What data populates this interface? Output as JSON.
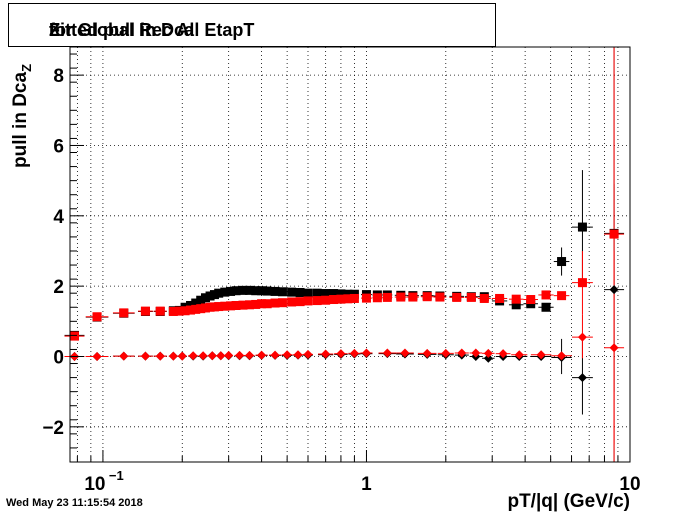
{
  "title": {
    "main": "Fitted pull in Dca",
    "sub": "Z",
    "rest": " for Global Rec All EtapT"
  },
  "timestamp": "Wed May 23 11:15:54 2018",
  "chart_data": {
    "type": "scatter",
    "x_scale": "log",
    "xlim": [
      0.075,
      10
    ],
    "ylim": [
      -3,
      8.8
    ],
    "xlabel": "pT/|q| (GeV/c)",
    "ylabel_main": "pull in Dca",
    "ylabel_sub": "Z",
    "grid": true,
    "x_ticks": [
      {
        "value": 0.1,
        "base": "10",
        "exp": "−1"
      },
      {
        "value": 1,
        "base": "1",
        "exp": ""
      },
      {
        "value": 10,
        "base": "10",
        "exp": ""
      }
    ],
    "y_ticks": [
      -2,
      0,
      2,
      4,
      6,
      8
    ],
    "y_tick_labels": [
      "−2",
      "0",
      "2",
      "4",
      "6",
      "8"
    ],
    "series": [
      {
        "color": "#000000",
        "marker": "square",
        "points": [
          {
            "x": 0.078,
            "y": 0.6
          },
          {
            "x": 0.095,
            "y": 1.12
          },
          {
            "x": 0.12,
            "y": 1.23
          },
          {
            "x": 0.145,
            "y": 1.28
          },
          {
            "x": 0.165,
            "y": 1.28
          },
          {
            "x": 0.185,
            "y": 1.3
          },
          {
            "x": 0.195,
            "y": 1.31
          },
          {
            "x": 0.205,
            "y": 1.4
          },
          {
            "x": 0.215,
            "y": 1.45
          },
          {
            "x": 0.225,
            "y": 1.52
          },
          {
            "x": 0.235,
            "y": 1.6
          },
          {
            "x": 0.245,
            "y": 1.67
          },
          {
            "x": 0.255,
            "y": 1.72
          },
          {
            "x": 0.265,
            "y": 1.76
          },
          {
            "x": 0.275,
            "y": 1.8
          },
          {
            "x": 0.29,
            "y": 1.83
          },
          {
            "x": 0.305,
            "y": 1.85
          },
          {
            "x": 0.32,
            "y": 1.87
          },
          {
            "x": 0.34,
            "y": 1.88
          },
          {
            "x": 0.36,
            "y": 1.88
          },
          {
            "x": 0.38,
            "y": 1.87
          },
          {
            "x": 0.4,
            "y": 1.87
          },
          {
            "x": 0.42,
            "y": 1.86
          },
          {
            "x": 0.45,
            "y": 1.85
          },
          {
            "x": 0.48,
            "y": 1.84
          },
          {
            "x": 0.52,
            "y": 1.83
          },
          {
            "x": 0.56,
            "y": 1.82
          },
          {
            "x": 0.6,
            "y": 1.8
          },
          {
            "x": 0.65,
            "y": 1.8
          },
          {
            "x": 0.7,
            "y": 1.79
          },
          {
            "x": 0.75,
            "y": 1.79
          },
          {
            "x": 0.8,
            "y": 1.78
          },
          {
            "x": 0.85,
            "y": 1.77
          },
          {
            "x": 0.9,
            "y": 1.77
          },
          {
            "x": 1.0,
            "y": 1.76
          },
          {
            "x": 1.1,
            "y": 1.75
          },
          {
            "x": 1.2,
            "y": 1.75
          },
          {
            "x": 1.35,
            "y": 1.74
          },
          {
            "x": 1.5,
            "y": 1.73
          },
          {
            "x": 1.7,
            "y": 1.73
          },
          {
            "x": 1.9,
            "y": 1.72
          },
          {
            "x": 2.2,
            "y": 1.71
          },
          {
            "x": 2.5,
            "y": 1.7
          },
          {
            "x": 2.8,
            "y": 1.7
          },
          {
            "x": 3.2,
            "y": 1.58
          },
          {
            "x": 3.7,
            "y": 1.47
          },
          {
            "x": 4.2,
            "y": 1.5
          },
          {
            "x": 4.8,
            "y": 1.4
          },
          {
            "x": 5.5,
            "y": 2.7
          },
          {
            "x": 6.6,
            "y": 3.68
          },
          {
            "x": 8.7,
            "y": 3.5
          }
        ]
      },
      {
        "color": "#ff0000",
        "marker": "square",
        "points": [
          {
            "x": 0.078,
            "y": 0.58
          },
          {
            "x": 0.095,
            "y": 1.13
          },
          {
            "x": 0.12,
            "y": 1.24
          },
          {
            "x": 0.145,
            "y": 1.29
          },
          {
            "x": 0.165,
            "y": 1.29
          },
          {
            "x": 0.185,
            "y": 1.28
          },
          {
            "x": 0.195,
            "y": 1.29
          },
          {
            "x": 0.205,
            "y": 1.3
          },
          {
            "x": 0.215,
            "y": 1.32
          },
          {
            "x": 0.225,
            "y": 1.34
          },
          {
            "x": 0.235,
            "y": 1.36
          },
          {
            "x": 0.245,
            "y": 1.38
          },
          {
            "x": 0.255,
            "y": 1.4
          },
          {
            "x": 0.265,
            "y": 1.41
          },
          {
            "x": 0.275,
            "y": 1.42
          },
          {
            "x": 0.29,
            "y": 1.43
          },
          {
            "x": 0.305,
            "y": 1.44
          },
          {
            "x": 0.32,
            "y": 1.45
          },
          {
            "x": 0.34,
            "y": 1.46
          },
          {
            "x": 0.36,
            "y": 1.47
          },
          {
            "x": 0.38,
            "y": 1.48
          },
          {
            "x": 0.4,
            "y": 1.5
          },
          {
            "x": 0.42,
            "y": 1.5
          },
          {
            "x": 0.45,
            "y": 1.52
          },
          {
            "x": 0.48,
            "y": 1.53
          },
          {
            "x": 0.52,
            "y": 1.55
          },
          {
            "x": 0.56,
            "y": 1.56
          },
          {
            "x": 0.6,
            "y": 1.58
          },
          {
            "x": 0.65,
            "y": 1.59
          },
          {
            "x": 0.7,
            "y": 1.6
          },
          {
            "x": 0.75,
            "y": 1.62
          },
          {
            "x": 0.8,
            "y": 1.63
          },
          {
            "x": 0.85,
            "y": 1.64
          },
          {
            "x": 0.9,
            "y": 1.65
          },
          {
            "x": 1.0,
            "y": 1.66
          },
          {
            "x": 1.1,
            "y": 1.67
          },
          {
            "x": 1.2,
            "y": 1.68
          },
          {
            "x": 1.35,
            "y": 1.69
          },
          {
            "x": 1.5,
            "y": 1.69
          },
          {
            "x": 1.7,
            "y": 1.7
          },
          {
            "x": 1.9,
            "y": 1.69
          },
          {
            "x": 2.2,
            "y": 1.68
          },
          {
            "x": 2.5,
            "y": 1.68
          },
          {
            "x": 2.8,
            "y": 1.65
          },
          {
            "x": 3.2,
            "y": 1.65
          },
          {
            "x": 3.7,
            "y": 1.63
          },
          {
            "x": 4.2,
            "y": 1.62
          },
          {
            "x": 4.8,
            "y": 1.75
          },
          {
            "x": 5.5,
            "y": 1.73
          },
          {
            "x": 6.6,
            "y": 2.1
          },
          {
            "x": 8.7,
            "y": 3.48
          }
        ]
      },
      {
        "color": "#000000",
        "marker": "diamond",
        "points": [
          {
            "x": 0.078,
            "y": 0.0
          },
          {
            "x": 0.095,
            "y": 0.0
          },
          {
            "x": 0.12,
            "y": 0.01
          },
          {
            "x": 0.145,
            "y": 0.01
          },
          {
            "x": 0.165,
            "y": 0.01
          },
          {
            "x": 0.185,
            "y": 0.01
          },
          {
            "x": 0.2,
            "y": 0.01
          },
          {
            "x": 0.22,
            "y": 0.01
          },
          {
            "x": 0.24,
            "y": 0.01
          },
          {
            "x": 0.26,
            "y": 0.02
          },
          {
            "x": 0.28,
            "y": 0.02
          },
          {
            "x": 0.3,
            "y": 0.02
          },
          {
            "x": 0.33,
            "y": 0.02
          },
          {
            "x": 0.36,
            "y": 0.02
          },
          {
            "x": 0.4,
            "y": 0.03
          },
          {
            "x": 0.45,
            "y": 0.03
          },
          {
            "x": 0.5,
            "y": 0.03
          },
          {
            "x": 0.55,
            "y": 0.04
          },
          {
            "x": 0.6,
            "y": 0.04
          },
          {
            "x": 0.7,
            "y": 0.05
          },
          {
            "x": 0.8,
            "y": 0.06
          },
          {
            "x": 0.9,
            "y": 0.07
          },
          {
            "x": 1.0,
            "y": 0.08
          },
          {
            "x": 1.2,
            "y": 0.08
          },
          {
            "x": 1.4,
            "y": 0.07
          },
          {
            "x": 1.7,
            "y": 0.06
          },
          {
            "x": 2.0,
            "y": 0.05
          },
          {
            "x": 2.3,
            "y": 0.04
          },
          {
            "x": 2.6,
            "y": 0.0
          },
          {
            "x": 2.9,
            "y": -0.05
          },
          {
            "x": 3.3,
            "y": 0.0
          },
          {
            "x": 3.8,
            "y": 0.0
          },
          {
            "x": 4.6,
            "y": 0.0
          },
          {
            "x": 5.5,
            "y": -0.03
          },
          {
            "x": 6.6,
            "y": -0.6
          },
          {
            "x": 8.7,
            "y": 1.9
          }
        ]
      },
      {
        "color": "#ff0000",
        "marker": "diamond",
        "points": [
          {
            "x": 0.078,
            "y": 0.0
          },
          {
            "x": 0.095,
            "y": 0.0
          },
          {
            "x": 0.12,
            "y": 0.01
          },
          {
            "x": 0.145,
            "y": 0.01
          },
          {
            "x": 0.165,
            "y": 0.01
          },
          {
            "x": 0.185,
            "y": 0.01
          },
          {
            "x": 0.2,
            "y": 0.01
          },
          {
            "x": 0.22,
            "y": 0.02
          },
          {
            "x": 0.24,
            "y": 0.02
          },
          {
            "x": 0.26,
            "y": 0.02
          },
          {
            "x": 0.28,
            "y": 0.02
          },
          {
            "x": 0.3,
            "y": 0.03
          },
          {
            "x": 0.33,
            "y": 0.03
          },
          {
            "x": 0.36,
            "y": 0.03
          },
          {
            "x": 0.4,
            "y": 0.04
          },
          {
            "x": 0.45,
            "y": 0.04
          },
          {
            "x": 0.5,
            "y": 0.05
          },
          {
            "x": 0.55,
            "y": 0.05
          },
          {
            "x": 0.6,
            "y": 0.06
          },
          {
            "x": 0.7,
            "y": 0.07
          },
          {
            "x": 0.8,
            "y": 0.08
          },
          {
            "x": 0.9,
            "y": 0.09
          },
          {
            "x": 1.0,
            "y": 0.1
          },
          {
            "x": 1.2,
            "y": 0.1
          },
          {
            "x": 1.4,
            "y": 0.1
          },
          {
            "x": 1.7,
            "y": 0.09
          },
          {
            "x": 2.0,
            "y": 0.09
          },
          {
            "x": 2.3,
            "y": 0.1
          },
          {
            "x": 2.6,
            "y": 0.1
          },
          {
            "x": 2.9,
            "y": 0.09
          },
          {
            "x": 3.3,
            "y": 0.08
          },
          {
            "x": 3.8,
            "y": 0.05
          },
          {
            "x": 4.6,
            "y": 0.05
          },
          {
            "x": 5.5,
            "y": 0.02
          },
          {
            "x": 6.6,
            "y": 0.55
          },
          {
            "x": 8.7,
            "y": 0.25
          }
        ]
      }
    ],
    "error_bars": [
      {
        "series": 0,
        "x": 6.6,
        "y_low": 2.0,
        "y_high": 5.3
      },
      {
        "series": 0,
        "x": 8.7,
        "y_low": -3,
        "y_high": 8.8
      },
      {
        "series": 2,
        "x": 6.6,
        "y_low": -1.65,
        "y_high": 0.45
      },
      {
        "series": 2,
        "x": 8.7,
        "y_low": -1.0,
        "y_high": 4.9
      },
      {
        "series": 1,
        "x": 6.6,
        "y_low": 1.2,
        "y_high": 3.0
      },
      {
        "series": 1,
        "x": 8.7,
        "y_low": -3,
        "y_high": 8.8
      },
      {
        "series": 3,
        "x": 6.6,
        "y_low": -0.05,
        "y_high": 1.2
      },
      {
        "series": 3,
        "x": 8.7,
        "y_low": -2.5,
        "y_high": 3.0
      },
      {
        "series": 0,
        "x": 5.5,
        "y_low": 2.3,
        "y_high": 3.1
      },
      {
        "series": 2,
        "x": 5.5,
        "y_low": -0.5,
        "y_high": 0.5
      }
    ]
  }
}
